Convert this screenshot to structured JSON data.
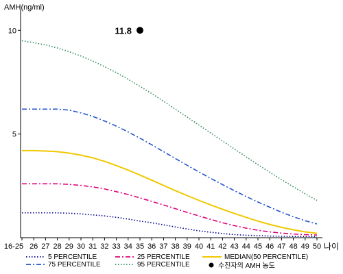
{
  "chart_data": {
    "type": "line",
    "ylabel": "AMH(ng/ml)",
    "xlabel": "나이",
    "categories": [
      "16-25",
      "26",
      "27",
      "28",
      "29",
      "30",
      "31",
      "32",
      "33",
      "34",
      "35",
      "36",
      "37",
      "38",
      "39",
      "40",
      "41",
      "42",
      "43",
      "44",
      "45",
      "46",
      "47",
      "48",
      "49",
      "50"
    ],
    "y_ticks": [
      "10",
      "5"
    ],
    "ylim": [
      0,
      11
    ],
    "grid": false,
    "legend_position": "bottom",
    "series": [
      {
        "name": "5 PERCENTILE",
        "color": "#00008b",
        "dash": "dotted",
        "values": [
          1.2,
          1.2,
          1.2,
          1.2,
          1.18,
          1.15,
          1.1,
          1.05,
          0.98,
          0.9,
          0.8,
          0.72,
          0.62,
          0.52,
          0.42,
          0.33,
          0.26,
          0.2,
          0.15,
          0.12,
          0.1,
          0.08,
          0.07,
          0.06,
          0.06,
          0.05
        ]
      },
      {
        "name": "25 PERCENTILE",
        "color": "#e0007a",
        "dash": "dashdot",
        "values": [
          2.6,
          2.6,
          2.6,
          2.6,
          2.57,
          2.52,
          2.45,
          2.35,
          2.22,
          2.08,
          1.92,
          1.75,
          1.58,
          1.4,
          1.22,
          1.05,
          0.88,
          0.72,
          0.58,
          0.46,
          0.36,
          0.28,
          0.22,
          0.18,
          0.15,
          0.13
        ]
      },
      {
        "name": "MEDIAN(50 PERCENTILE)",
        "color": "#f0c800",
        "dash": "solid",
        "values": [
          4.2,
          4.2,
          4.18,
          4.15,
          4.08,
          3.98,
          3.85,
          3.68,
          3.48,
          3.26,
          3.02,
          2.77,
          2.52,
          2.27,
          2.03,
          1.8,
          1.58,
          1.37,
          1.17,
          0.98,
          0.8,
          0.64,
          0.5,
          0.38,
          0.28,
          0.21
        ]
      },
      {
        "name": "75 PERCENTILE",
        "color": "#2255cc",
        "dash": "dashdot",
        "values": [
          6.2,
          6.2,
          6.2,
          6.2,
          6.15,
          6.02,
          5.85,
          5.63,
          5.38,
          5.1,
          4.8,
          4.48,
          4.15,
          3.82,
          3.49,
          3.17,
          2.86,
          2.56,
          2.27,
          1.99,
          1.72,
          1.47,
          1.23,
          1.01,
          0.82,
          0.66
        ]
      },
      {
        "name": "95 PERCENTILE",
        "color": "#2e8b57",
        "dash": "dotted",
        "values": [
          9.5,
          9.4,
          9.3,
          9.15,
          8.97,
          8.76,
          8.52,
          8.25,
          7.96,
          7.64,
          7.3,
          6.95,
          6.58,
          6.2,
          5.82,
          5.43,
          5.05,
          4.66,
          4.28,
          3.9,
          3.52,
          3.15,
          2.8,
          2.45,
          2.12,
          1.8
        ]
      }
    ],
    "annotations": [
      {
        "label": "11.8",
        "x": "35",
        "y": 10,
        "marker": "dot",
        "color": "#000000"
      }
    ],
    "legend_extra": {
      "label": "수진자의 AMH 농도",
      "marker": "dot",
      "color": "#000000"
    }
  }
}
